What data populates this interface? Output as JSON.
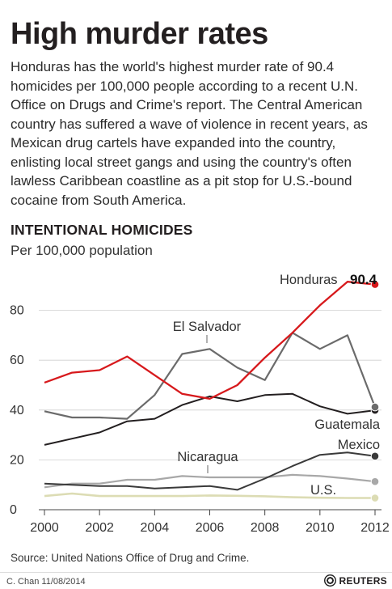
{
  "header": {
    "title": "High murder rates",
    "description": "Honduras has the world's highest murder rate of 90.4 homicides per 100,000 people according to a recent U.N. Office on Drugs and Crime's report. The Central American country has suffered a wave of violence in recent years, as Mexican drug cartels have expanded into the country, enlisting local street gangs and using the country's often lawless Caribbean coastline as a pit stop for U.S.-bound cocaine from South America."
  },
  "chart_data": {
    "type": "line",
    "title": "INTENTIONAL HOMICIDES",
    "subtitle": "Per 100,000 population",
    "xlabel": "",
    "ylabel": "",
    "x": [
      2000,
      2001,
      2002,
      2003,
      2004,
      2005,
      2006,
      2007,
      2008,
      2009,
      2010,
      2011,
      2012
    ],
    "xticks": [
      "2000",
      "2002",
      "2004",
      "2006",
      "2008",
      "2010",
      "2012"
    ],
    "yticks": [
      "0",
      "20",
      "40",
      "60",
      "80"
    ],
    "ylim": [
      0,
      95
    ],
    "xlim": [
      2000,
      2012
    ],
    "grid": true,
    "series": [
      {
        "name": "Honduras",
        "color": "#d7191c",
        "values": [
          51,
          55,
          56,
          61.5,
          54,
          46.5,
          44.5,
          50,
          61,
          71,
          82,
          91.5,
          90.4
        ]
      },
      {
        "name": "El Salvador",
        "color": "#6b6b6b",
        "values": [
          39.5,
          37,
          37,
          36.5,
          46,
          62.5,
          64.5,
          57,
          52,
          71,
          64.5,
          70,
          41.2
        ]
      },
      {
        "name": "Guatemala",
        "color": "#231f20",
        "values": [
          26,
          28.5,
          31,
          35.5,
          36.5,
          42,
          45.5,
          43.5,
          46,
          46.5,
          41.5,
          38.5,
          39.9
        ]
      },
      {
        "name": "Mexico",
        "color": "#3a3a3a",
        "values": [
          10.5,
          10,
          9.5,
          9.5,
          8.5,
          9,
          9.5,
          8,
          12.5,
          17.5,
          22,
          23,
          21.5
        ]
      },
      {
        "name": "Nicaragua",
        "color": "#a8a8a8",
        "values": [
          9,
          10.5,
          10.5,
          12,
          12,
          13.5,
          13,
          13,
          13,
          14,
          13.5,
          12.5,
          11.3
        ]
      },
      {
        "name": "U.S.",
        "color": "#dcdcb4",
        "values": [
          5.5,
          6.5,
          5.5,
          5.5,
          5.5,
          5.5,
          5.7,
          5.6,
          5.4,
          5,
          4.8,
          4.7,
          4.7
        ]
      }
    ],
    "annotations": [
      {
        "text": "90.4",
        "series": "Honduras"
      }
    ]
  },
  "footer": {
    "source": "Source: United Nations Office of Drug and Crime.",
    "credit": "C. Chan  11/08/2014",
    "logo_text": "REUTERS"
  }
}
